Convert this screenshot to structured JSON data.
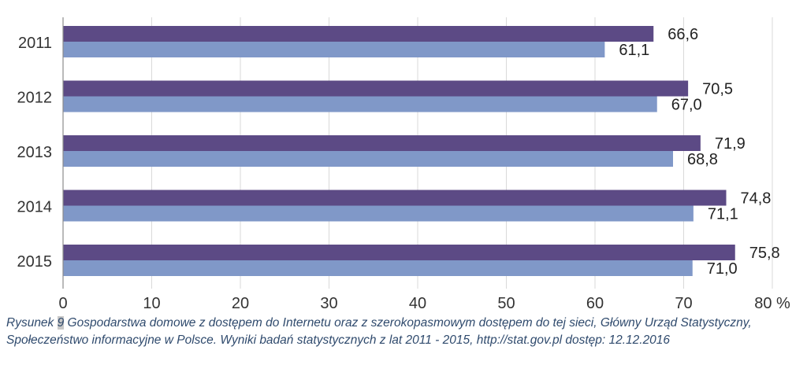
{
  "chart_data": {
    "type": "bar",
    "orientation": "horizontal",
    "categories": [
      "2011",
      "2012",
      "2013",
      "2014",
      "2015"
    ],
    "series": [
      {
        "values": [
          66.6,
          70.5,
          71.9,
          74.8,
          75.8
        ],
        "labels": [
          "66,6",
          "70,5",
          "71,9",
          "74,8",
          "75,8"
        ],
        "color": "#5c4a85"
      },
      {
        "values": [
          61.1,
          67.0,
          68.8,
          71.1,
          71.0
        ],
        "labels": [
          "61,1",
          "67,0",
          "68,8",
          "71,1",
          "71,0"
        ],
        "color": "#8098c8"
      }
    ],
    "xlim": [
      0,
      80
    ],
    "x_ticks": [
      0,
      10,
      20,
      30,
      40,
      50,
      60,
      70,
      80
    ],
    "x_tick_labels": [
      "0",
      "10",
      "20",
      "30",
      "40",
      "50",
      "60",
      "70",
      "80 %"
    ],
    "grid": "vertical",
    "legend": "none"
  },
  "caption": {
    "prefix": "Rysunek ",
    "number": "9",
    "text": " Gospodarstwa domowe z dostępem do Internetu oraz z szerokopasmowym dostępem do tej sieci, Główny Urząd Statystyczny, Społeczeństwo informacyjne w Polsce. Wyniki badań statystycznych z lat 2011 - 2015, http://stat.gov.pl dostęp: 12.12.2016"
  }
}
